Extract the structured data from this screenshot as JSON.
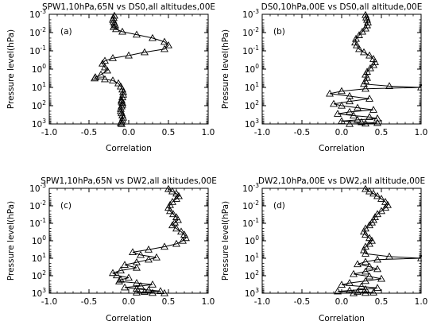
{
  "chart_data": [
    {
      "type": "line",
      "marker": "triangle-open",
      "title": "SPW1,10hPa,65N vs DS0,all altitudes,00E",
      "panel_label": "(a)",
      "xlabel": "Correlation",
      "ylabel": "Pressure level(hPa)",
      "xlim": [
        -1.0,
        1.0
      ],
      "ylim": [
        1000,
        0.001
      ],
      "yscale": "log",
      "xticks": [
        "-1.0",
        "-0.5",
        "0.0",
        "0.5",
        "1.0"
      ],
      "yticks": [
        {
          "value": 0.001,
          "base": "10",
          "exp": "-3"
        },
        {
          "value": 0.01,
          "base": "10",
          "exp": "-2"
        },
        {
          "value": 0.1,
          "base": "10",
          "exp": "-1"
        },
        {
          "value": 1,
          "base": "10",
          "exp": "0"
        },
        {
          "value": 10,
          "base": "10",
          "exp": "1"
        },
        {
          "value": 100,
          "base": "10",
          "exp": "2"
        },
        {
          "value": 1000,
          "base": "10",
          "exp": "3"
        }
      ],
      "series": [
        {
          "x": [
            -0.18,
            -0.19,
            -0.2,
            -0.19,
            -0.18,
            -0.17,
            -0.19,
            -0.16,
            -0.08,
            0.1,
            0.3,
            0.45,
            0.5,
            0.45,
            0.2,
            0.0,
            -0.2,
            -0.3,
            -0.33,
            -0.3,
            -0.27,
            -0.35,
            -0.42,
            -0.43,
            -0.3,
            -0.2,
            -0.13,
            -0.1,
            -0.08,
            -0.07,
            -0.07,
            -0.08,
            -0.09,
            -0.09,
            -0.08,
            -0.08,
            -0.09,
            -0.1,
            -0.1,
            -0.09,
            -0.08,
            -0.07,
            -0.08,
            -0.09,
            -0.1,
            -0.09
          ],
          "y": [
            0.0012,
            0.0016,
            0.002,
            0.0025,
            0.0032,
            0.004,
            0.005,
            0.0065,
            0.009,
            0.013,
            0.02,
            0.032,
            0.05,
            0.08,
            0.12,
            0.18,
            0.25,
            0.35,
            0.5,
            0.8,
            1.2,
            2.0,
            2.8,
            3.2,
            3.6,
            4.2,
            6.0,
            9.0,
            13,
            18,
            25,
            35,
            50,
            60,
            70,
            90,
            110,
            150,
            200,
            260,
            340,
            450,
            600,
            750,
            900,
            1000
          ]
        }
      ]
    },
    {
      "type": "line",
      "marker": "triangle-open",
      "title": "DS0,10hPa,00E vs DS0,all altitude,00E",
      "panel_label": "(b)",
      "xlabel": "Correlation",
      "ylabel": "Pressure level(hPa)",
      "xlim": [
        -1.0,
        1.0
      ],
      "ylim": [
        1000,
        0.001
      ],
      "yscale": "log",
      "xticks": [
        "-1.0",
        "-0.5",
        "0.0",
        "0.5",
        "1.0"
      ],
      "yticks": [
        {
          "value": 0.001,
          "base": "10",
          "exp": "-3"
        },
        {
          "value": 0.01,
          "base": "10",
          "exp": "-2"
        },
        {
          "value": 0.1,
          "base": "10",
          "exp": "-1"
        },
        {
          "value": 1,
          "base": "10",
          "exp": "0"
        },
        {
          "value": 10,
          "base": "10",
          "exp": "1"
        },
        {
          "value": 100,
          "base": "10",
          "exp": "2"
        },
        {
          "value": 1000,
          "base": "10",
          "exp": "3"
        }
      ],
      "series": [
        {
          "x": [
            0.3,
            0.31,
            0.32,
            0.33,
            0.32,
            0.3,
            0.26,
            0.22,
            0.18,
            0.17,
            0.19,
            0.22,
            0.28,
            0.35,
            0.4,
            0.42,
            0.4,
            0.36,
            0.32,
            0.3,
            0.32,
            0.3,
            0.28,
            0.6,
            1.0,
            0.3,
            0.0,
            -0.15,
            0.1,
            0.35,
            0.1,
            -0.1,
            0.0,
            0.2,
            0.4,
            0.1,
            -0.05,
            0.15,
            0.35,
            0.45,
            0.2,
            0.0,
            0.25,
            0.45,
            0.3,
            0.1
          ],
          "y": [
            0.0011,
            0.0015,
            0.002,
            0.0028,
            0.004,
            0.006,
            0.009,
            0.014,
            0.022,
            0.035,
            0.05,
            0.08,
            0.12,
            0.18,
            0.28,
            0.42,
            0.6,
            0.9,
            1.4,
            2.0,
            3.0,
            4.5,
            6.5,
            8.5,
            10,
            12,
            16,
            22,
            30,
            42,
            58,
            80,
            100,
            130,
            170,
            220,
            280,
            350,
            420,
            500,
            600,
            700,
            800,
            880,
            950,
            1000
          ]
        }
      ]
    },
    {
      "type": "line",
      "marker": "triangle-open",
      "title": "SPW1,10hPa,65N vs DW2,all altitudes,00E",
      "panel_label": "(c)",
      "xlabel": "Correlation",
      "ylabel": "Pressure level(hPa)",
      "xlim": [
        -1.0,
        1.0
      ],
      "ylim": [
        1000,
        0.001
      ],
      "yscale": "log",
      "xticks": [
        "-1.0",
        "-0.5",
        "0.0",
        "0.5",
        "1.0"
      ],
      "yticks": [
        {
          "value": 0.001,
          "base": "10",
          "exp": "-3"
        },
        {
          "value": 0.01,
          "base": "10",
          "exp": "-2"
        },
        {
          "value": 0.1,
          "base": "10",
          "exp": "-1"
        },
        {
          "value": 1,
          "base": "10",
          "exp": "0"
        },
        {
          "value": 10,
          "base": "10",
          "exp": "1"
        },
        {
          "value": 100,
          "base": "10",
          "exp": "2"
        },
        {
          "value": 1000,
          "base": "10",
          "exp": "3"
        }
      ],
      "series": [
        {
          "x": [
            0.5,
            0.55,
            0.6,
            0.63,
            0.6,
            0.55,
            0.52,
            0.5,
            0.52,
            0.56,
            0.6,
            0.62,
            0.58,
            0.55,
            0.6,
            0.66,
            0.7,
            0.72,
            0.68,
            0.6,
            0.45,
            0.25,
            0.05,
            0.15,
            0.35,
            0.25,
            0.1,
            -0.05,
            0.1,
            -0.1,
            -0.2,
            -0.15,
            0.0,
            -0.1,
            -0.12,
            0.1,
            0.3,
            0.15,
            -0.05,
            0.1,
            0.25,
            0.4,
            0.2,
            0.1,
            0.3,
            0.45
          ],
          "y": [
            0.0011,
            0.0015,
            0.002,
            0.0028,
            0.004,
            0.006,
            0.009,
            0.013,
            0.02,
            0.03,
            0.045,
            0.065,
            0.09,
            0.13,
            0.2,
            0.3,
            0.45,
            0.7,
            1.0,
            1.5,
            2.2,
            3.2,
            4.5,
            6.5,
            9,
            12,
            17,
            24,
            35,
            50,
            70,
            95,
            130,
            170,
            210,
            260,
            320,
            390,
            470,
            560,
            660,
            760,
            850,
            920,
            970,
            1000
          ]
        }
      ]
    },
    {
      "type": "line",
      "marker": "triangle-open",
      "title": "DW2,10hPa,00E vs DW2,all altitude,00E",
      "panel_label": "(d)",
      "xlabel": "Correlation",
      "ylabel": "Pressure level(hPa)",
      "xlim": [
        -1.0,
        1.0
      ],
      "ylim": [
        1000,
        0.001
      ],
      "yscale": "log",
      "xticks": [
        "-1.0",
        "-0.5",
        "0.0",
        "0.5",
        "1.0"
      ],
      "yticks": [
        {
          "value": 0.001,
          "base": "10",
          "exp": "-3"
        },
        {
          "value": 0.01,
          "base": "10",
          "exp": "-2"
        },
        {
          "value": 0.1,
          "base": "10",
          "exp": "-1"
        },
        {
          "value": 1,
          "base": "10",
          "exp": "0"
        },
        {
          "value": 10,
          "base": "10",
          "exp": "1"
        },
        {
          "value": 100,
          "base": "10",
          "exp": "2"
        },
        {
          "value": 1000,
          "base": "10",
          "exp": "3"
        }
      ],
      "series": [
        {
          "x": [
            0.3,
            0.35,
            0.4,
            0.45,
            0.5,
            0.55,
            0.58,
            0.55,
            0.5,
            0.45,
            0.42,
            0.4,
            0.38,
            0.35,
            0.3,
            0.28,
            0.3,
            0.35,
            0.38,
            0.35,
            0.3,
            0.28,
            0.3,
            0.6,
            1.0,
            0.45,
            0.3,
            0.2,
            0.35,
            0.45,
            0.3,
            0.15,
            0.35,
            0.5,
            0.3,
            0.1,
            0.0,
            0.25,
            0.45,
            0.3,
            0.1,
            -0.05,
            0.2,
            0.4,
            0.3,
            0.15
          ],
          "y": [
            0.0011,
            0.0015,
            0.002,
            0.0028,
            0.004,
            0.006,
            0.009,
            0.013,
            0.02,
            0.03,
            0.045,
            0.065,
            0.09,
            0.13,
            0.2,
            0.3,
            0.45,
            0.7,
            1.0,
            1.5,
            2.2,
            3.5,
            5.5,
            8,
            10,
            12,
            16,
            22,
            30,
            42,
            58,
            80,
            110,
            150,
            200,
            260,
            330,
            410,
            500,
            600,
            700,
            790,
            860,
            920,
            970,
            1000
          ]
        }
      ]
    }
  ]
}
